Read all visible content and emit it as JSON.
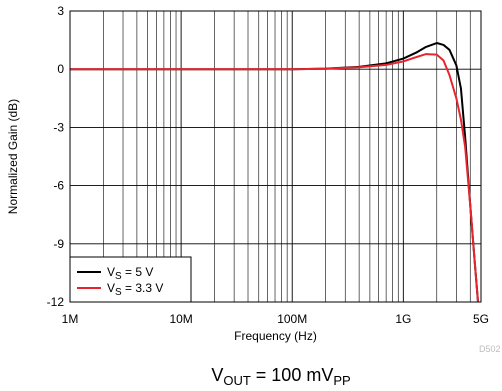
{
  "chart_data": {
    "type": "line",
    "title": "",
    "xlabel": "Frequency (Hz)",
    "ylabel": "Normalized Gain (dB)",
    "x_scale": "log",
    "xlim": [
      1000000,
      5000000000
    ],
    "ylim": [
      -12,
      3
    ],
    "grid": true,
    "legend_position": "bottom-left",
    "x_ticks": [
      {
        "value": 1000000,
        "label": "1M"
      },
      {
        "value": 10000000,
        "label": "10M"
      },
      {
        "value": 100000000,
        "label": "100M"
      },
      {
        "value": 1000000000,
        "label": "1G"
      },
      {
        "value": 5000000000,
        "label": "5G"
      }
    ],
    "y_ticks": [
      {
        "value": 3,
        "label": "3"
      },
      {
        "value": 0,
        "label": "0"
      },
      {
        "value": -3,
        "label": "-3"
      },
      {
        "value": -6,
        "label": "-6"
      },
      {
        "value": -9,
        "label": "-9"
      },
      {
        "value": -12,
        "label": "-12"
      }
    ],
    "series": [
      {
        "name": "VS = 5 V",
        "legend_main": "V",
        "legend_sub": "S",
        "legend_rest": " = 5 V",
        "color": "#000000",
        "x": [
          1000000,
          10000000,
          50000000,
          100000000,
          200000000,
          400000000,
          700000000,
          1000000000,
          1300000000,
          1600000000,
          2000000000,
          2300000000,
          2600000000,
          3000000000,
          3300000000,
          3600000000,
          4000000000,
          4400000000,
          4700000000
        ],
        "y": [
          0.0,
          0.0,
          0.0,
          0.0,
          0.03,
          0.12,
          0.3,
          0.55,
          0.85,
          1.15,
          1.35,
          1.25,
          1.0,
          0.2,
          -1.0,
          -3.5,
          -7.0,
          -10.0,
          -12.0
        ]
      },
      {
        "name": "VS = 3.3 V",
        "legend_main": "V",
        "legend_sub": "S",
        "legend_rest": " = 3.3 V",
        "color": "#e8242e",
        "x": [
          1000000,
          10000000,
          50000000,
          100000000,
          200000000,
          400000000,
          700000000,
          1000000000,
          1300000000,
          1600000000,
          2000000000,
          2300000000,
          2600000000,
          3000000000,
          3300000000,
          3600000000,
          4000000000,
          4400000000,
          4700000000
        ],
        "y": [
          0.0,
          0.0,
          0.0,
          0.0,
          0.02,
          0.1,
          0.22,
          0.4,
          0.62,
          0.78,
          0.75,
          0.45,
          -0.3,
          -1.5,
          -2.6,
          -4.0,
          -7.0,
          -10.0,
          -12.0
        ]
      }
    ]
  },
  "labels": {
    "code": "D502",
    "caption_main": "V",
    "caption_sub1": "OUT",
    "caption_mid": " = 100 mV",
    "caption_sub2": "PP"
  }
}
